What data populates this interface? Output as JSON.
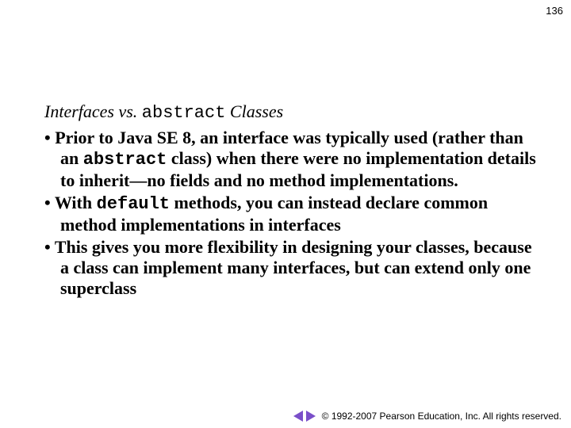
{
  "page_number": "136",
  "heading": {
    "part1": "Interfaces vs. ",
    "code": "abstract",
    "part2": " Classes"
  },
  "bullets": [
    {
      "p1": "Prior to Java SE 8, an interface was typically used (rather than an ",
      "c1": "abstract",
      "p2": " class) when there were no implementation details to inherit—no fields and no method implementations."
    },
    {
      "p1": "With ",
      "c1": "default",
      "p2": " methods, you can instead declare common method implementations in interfaces"
    },
    {
      "p1": "This gives you more flexibility in designing your classes, because a class can implement many interfaces, but can extend only one superclass"
    }
  ],
  "footer": {
    "copyright": "© 1992-2007 Pearson Education, Inc. All rights reserved."
  },
  "colors": {
    "arrow": "#7a4fc9",
    "background": "#ffffff",
    "text": "#000000"
  }
}
